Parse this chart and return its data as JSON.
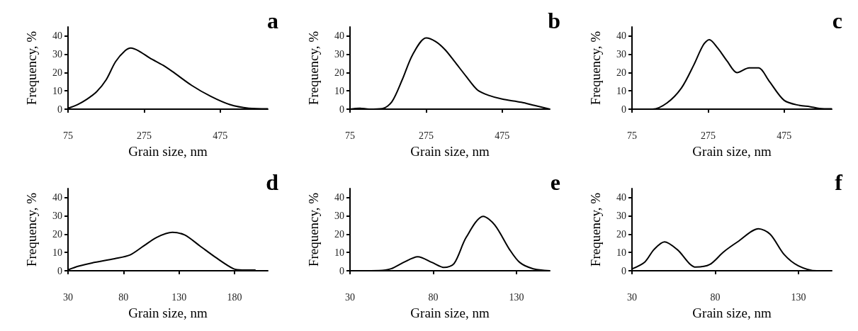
{
  "chart_data": [
    {
      "type": "line",
      "title": "a",
      "xlabel": "Grain size, nm",
      "ylabel": "Frequency, %",
      "x": [
        75,
        100,
        125,
        150,
        175,
        200,
        225,
        240,
        260,
        290,
        325,
        350,
        400,
        450,
        500,
        550,
        600
      ],
      "values": [
        0.5,
        2.5,
        5.5,
        9.5,
        16,
        26,
        32,
        33.5,
        32,
        28,
        24,
        20.5,
        13,
        7,
        2.5,
        0.5,
        0.2
      ],
      "color": "#000000",
      "marker": "none",
      "xlim": [
        75,
        600
      ],
      "xticks": [
        75,
        275,
        475
      ],
      "ylim": [
        0,
        45
      ],
      "yticks": [
        0,
        10,
        20,
        30,
        40
      ]
    },
    {
      "type": "line",
      "title": "b",
      "xlabel": "Grain size, nm",
      "ylabel": "Frequency, %",
      "x": [
        75,
        100,
        125,
        160,
        185,
        212,
        240,
        275,
        300,
        325,
        350,
        380,
        410,
        440,
        475,
        525,
        560,
        600
      ],
      "values": [
        0,
        0.5,
        0,
        0.3,
        4,
        16,
        30,
        39,
        37,
        32.5,
        26,
        18,
        10.5,
        7.5,
        5.5,
        3.8,
        2,
        0
      ],
      "color": "#000000",
      "marker": "none",
      "xlim": [
        75,
        600
      ],
      "xticks": [
        75,
        275,
        475
      ],
      "ylim": [
        0,
        45
      ],
      "yticks": [
        0,
        10,
        20,
        30,
        40
      ]
    },
    {
      "type": "line",
      "title": "c",
      "xlabel": "Grain size, nm",
      "ylabel": "Frequency, %",
      "x": [
        75,
        129,
        167,
        205,
        237,
        262,
        278,
        300,
        326,
        351,
        383,
        408,
        434,
        475,
        516,
        542,
        567,
        600
      ],
      "values": [
        0,
        0,
        3.4,
        11.6,
        24,
        35,
        38,
        33.5,
        26,
        20,
        22.6,
        22.6,
        15.8,
        4.8,
        2,
        1.4,
        0.4,
        0.2
      ],
      "color": "#000000",
      "marker": "none",
      "xlim": [
        75,
        600
      ],
      "xticks": [
        75,
        275,
        475
      ],
      "ylim": [
        0,
        45
      ],
      "yticks": [
        0,
        10,
        20,
        30,
        40
      ]
    },
    {
      "type": "line",
      "title": "d",
      "xlabel": "Grain size, nm",
      "ylabel": "Frequency, %",
      "x": [
        30,
        39.5,
        51.7,
        72,
        86,
        98,
        110,
        124,
        135,
        149,
        163,
        179,
        187,
        199
      ],
      "values": [
        0.5,
        2.5,
        4.3,
        6.6,
        8.7,
        13.5,
        18.3,
        21,
        19.6,
        13.5,
        7.3,
        1.1,
        0.4,
        0.4
      ],
      "color": "#000000",
      "marker": "none",
      "xlim": [
        30,
        210
      ],
      "xticks": [
        30,
        80,
        130,
        180
      ],
      "ylim": [
        0,
        45
      ],
      "yticks": [
        0,
        10,
        20,
        30,
        40
      ]
    },
    {
      "type": "line",
      "title": "e",
      "xlabel": "Grain size, nm",
      "ylabel": "Frequency, %",
      "x": [
        30,
        47.4,
        54.7,
        62,
        70.7,
        79.4,
        86.7,
        92.5,
        99.8,
        110,
        117,
        126,
        132,
        140,
        150
      ],
      "values": [
        0,
        0.1,
        1.1,
        4.5,
        7.7,
        4.5,
        1.8,
        3.9,
        18.3,
        29.8,
        25,
        11.4,
        4.5,
        1.1,
        0
      ],
      "color": "#000000",
      "marker": "none",
      "xlim": [
        30,
        150
      ],
      "xticks": [
        30,
        80,
        130
      ],
      "ylim": [
        0,
        45
      ],
      "yticks": [
        0,
        10,
        20,
        30,
        40
      ]
    },
    {
      "type": "line",
      "title": "f",
      "xlabel": "Grain size, nm",
      "ylabel": "Frequency, %",
      "x": [
        30,
        37.7,
        43.2,
        49.5,
        57.2,
        68.3,
        76.7,
        85,
        93.4,
        106,
        113,
        121.4,
        130,
        141,
        150
      ],
      "values": [
        1,
        4.8,
        11.6,
        15.8,
        11.6,
        2,
        3.4,
        10.3,
        15.8,
        23,
        20,
        8.9,
        2.7,
        0,
        0
      ],
      "color": "#000000",
      "marker": "none",
      "xlim": [
        30,
        150
      ],
      "xticks": [
        30,
        80,
        130
      ],
      "ylim": [
        0,
        45
      ],
      "yticks": [
        0,
        10,
        20,
        30,
        40
      ]
    }
  ]
}
